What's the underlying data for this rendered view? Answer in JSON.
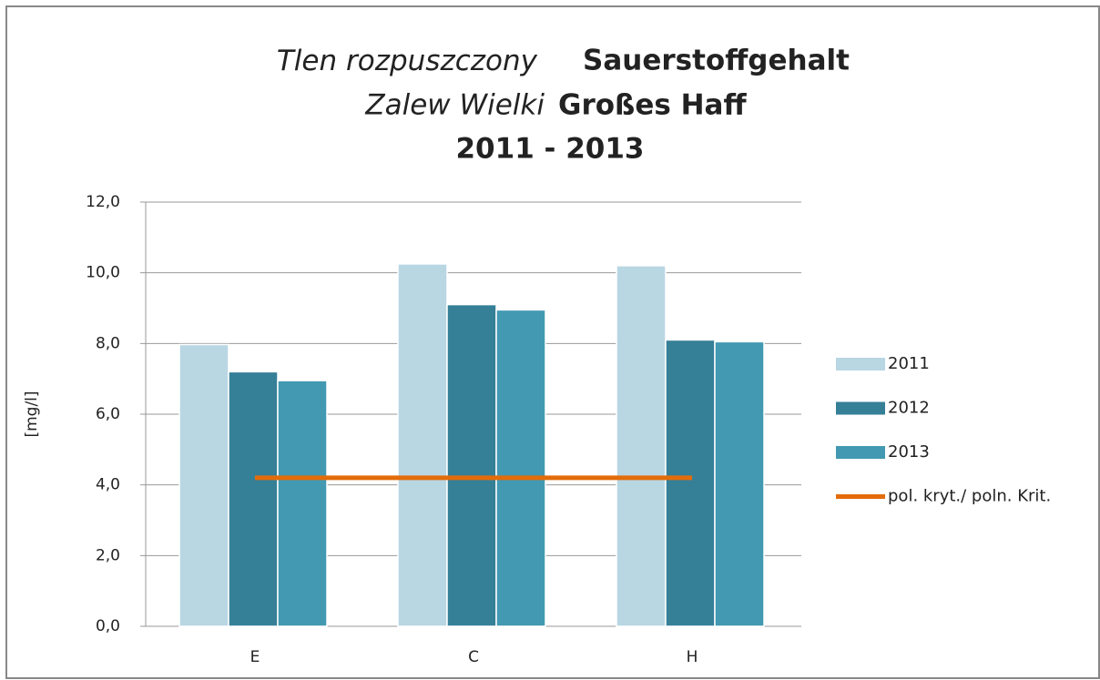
{
  "chart_data": {
    "type": "bar",
    "title": {
      "line1": [
        "Tlen rozpuszczony",
        "Sauerstoffgehalt"
      ],
      "line2": [
        "Zalew Wielki",
        "Großes Haff"
      ],
      "line3": "2011 - 2013"
    },
    "ylabel": "[mg/l]",
    "categories": [
      "E",
      "C",
      "H"
    ],
    "series": [
      {
        "name": "2011",
        "color": "#b9d6e3",
        "values": [
          7.97,
          10.25,
          10.2
        ]
      },
      {
        "name": "2012",
        "color": "#357f97",
        "values": [
          7.2,
          9.1,
          8.1
        ]
      },
      {
        "name": "2013",
        "color": "#4299b1",
        "values": [
          6.95,
          8.95,
          8.05
        ]
      },
      {
        "name": "pol. kryt./ poln. Krit.",
        "color": "#e36c0a",
        "type": "line",
        "values": [
          4.2,
          4.2,
          4.2
        ]
      }
    ],
    "ylim": [
      0,
      12
    ],
    "yticks": [
      {
        "value": 0,
        "label": "0,0"
      },
      {
        "value": 2,
        "label": "2,0"
      },
      {
        "value": 4,
        "label": "4,0"
      },
      {
        "value": 6,
        "label": "6,0"
      },
      {
        "value": 8,
        "label": "8,0"
      },
      {
        "value": 10,
        "label": "10,0"
      },
      {
        "value": 12,
        "label": "12,0"
      }
    ],
    "grid": true,
    "legend": "right"
  }
}
